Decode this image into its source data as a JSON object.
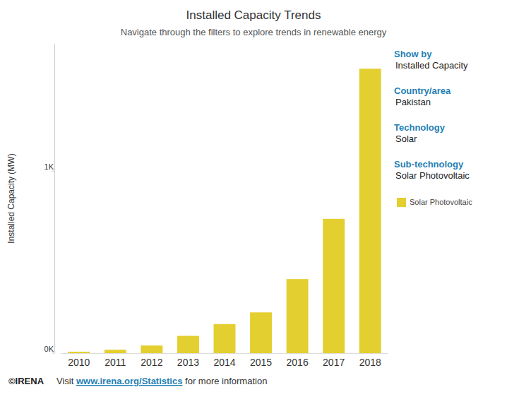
{
  "chart_data": {
    "type": "bar",
    "title": "Installed Capacity Trends",
    "subtitle": "Navigate through the filters to explore trends in renewable energy",
    "y_label": "Installed Capacity (MW)",
    "categories": [
      "2010",
      "2011",
      "2012",
      "2013",
      "2014",
      "2015",
      "2016",
      "2017",
      "2018"
    ],
    "series": [
      {
        "name": "Solar Photovoltaic",
        "color": "#e4cf30",
        "values": [
          8,
          19,
          42,
          95,
          160,
          224,
          407,
          738,
          1563
        ]
      }
    ],
    "ylim": [
      0,
      1700
    ],
    "yticks": [
      {
        "value": 0,
        "label": "0K"
      },
      {
        "value": 1000,
        "label": "1K"
      }
    ],
    "grid": false,
    "legend": "right",
    "filters": [
      {
        "label": "Show by",
        "value": "Installed Capacity"
      },
      {
        "label": "Country/area",
        "value": "Pakistan"
      },
      {
        "label": "Technology",
        "value": "Solar"
      },
      {
        "label": "Sub-technology",
        "value": "Solar Photovoltaic"
      }
    ],
    "source": "©IRENA",
    "footer": {
      "prefix": "Visit",
      "link": "www.irena.org/Statistics",
      "suffix": "for more information"
    }
  }
}
